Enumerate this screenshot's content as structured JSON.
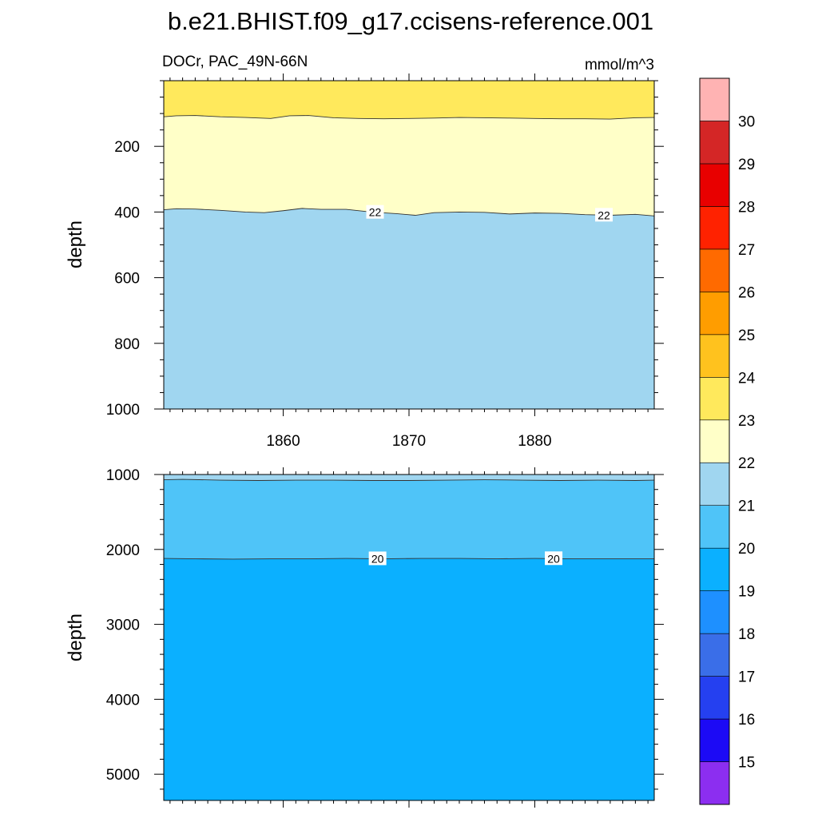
{
  "figure": {
    "title": "b.e21.BHIST.f09_g17.ccisens-reference.001",
    "left_string": "DOCr, PAC_49N-66N",
    "right_string": "mmol/m^3"
  },
  "chart_data": [
    {
      "type": "contour",
      "panel": "upper",
      "ylabel": "depth",
      "xlim": [
        1850.5,
        1889.5
      ],
      "ylim": [
        0,
        1000
      ],
      "y_reversed": true,
      "x_ticks": [
        1860,
        1870,
        1880
      ],
      "y_ticks": [
        200,
        400,
        600,
        800,
        1000
      ],
      "bands": [
        {
          "range": [
            23,
            24
          ],
          "color": "#ffe95c"
        },
        {
          "range": [
            22,
            23
          ],
          "color": "#ffffc8"
        },
        {
          "range": [
            21,
            22
          ],
          "color": "#a0d6f0"
        }
      ],
      "contours": [
        {
          "level": 23,
          "x": [
            1850.5,
            1851.5,
            1853,
            1855,
            1857,
            1859,
            1860.5,
            1862,
            1864,
            1866,
            1868,
            1870,
            1872,
            1874,
            1876,
            1878,
            1880,
            1882,
            1884,
            1886,
            1888,
            1889.5
          ],
          "y": [
            110,
            107,
            106,
            110,
            112,
            115,
            107,
            106,
            113,
            115,
            116,
            115,
            114,
            112,
            113,
            114,
            115,
            116,
            116,
            117,
            113,
            112
          ]
        },
        {
          "level": 22,
          "x": [
            1850.5,
            1851.5,
            1853,
            1855,
            1857,
            1858.5,
            1860,
            1861.5,
            1863,
            1865,
            1867,
            1869,
            1870.5,
            1872,
            1874,
            1876,
            1878,
            1880,
            1882,
            1884,
            1886,
            1888,
            1889.5
          ],
          "y": [
            393,
            390,
            391,
            395,
            400,
            402,
            396,
            389,
            392,
            392,
            400,
            405,
            410,
            402,
            400,
            401,
            406,
            403,
            404,
            408,
            410,
            407,
            412
          ],
          "labels": [
            {
              "x": 1867.3,
              "text": "22"
            },
            {
              "x": 1885.5,
              "text": "22"
            }
          ]
        }
      ]
    },
    {
      "type": "contour",
      "panel": "lower",
      "ylabel": "depth",
      "xlim": [
        1850.5,
        1889.5
      ],
      "ylim": [
        1000,
        5350
      ],
      "y_reversed": true,
      "x_ticks": [
        1860,
        1870,
        1880
      ],
      "y_ticks": [
        1000,
        2000,
        3000,
        4000,
        5000
      ],
      "bands": [
        {
          "range": [
            21,
            22
          ],
          "color": "#a0d6f0"
        },
        {
          "range": [
            20,
            21
          ],
          "color": "#4fc4f8"
        },
        {
          "range": [
            19,
            20
          ],
          "color": "#0bb0ff"
        }
      ],
      "contours": [
        {
          "level": 21,
          "x": [
            1850.5,
            1852,
            1855,
            1858,
            1861,
            1864,
            1867,
            1870,
            1873,
            1876,
            1879,
            1882,
            1885,
            1888,
            1889.5
          ],
          "y": [
            1070,
            1065,
            1075,
            1080,
            1075,
            1075,
            1080,
            1080,
            1075,
            1070,
            1075,
            1080,
            1075,
            1080,
            1075
          ]
        },
        {
          "level": 20,
          "x": [
            1850.5,
            1853,
            1856,
            1859,
            1862,
            1865,
            1868,
            1871,
            1874,
            1877,
            1880,
            1883,
            1886,
            1889.5
          ],
          "y": [
            2120,
            2125,
            2130,
            2125,
            2125,
            2120,
            2125,
            2120,
            2120,
            2125,
            2120,
            2125,
            2125,
            2125
          ],
          "labels": [
            {
              "x": 1867.5,
              "text": "20"
            },
            {
              "x": 1881.5,
              "text": "20"
            }
          ]
        }
      ]
    },
    {
      "type": "colorbar",
      "orientation": "vertical",
      "tick_labels": [
        "15",
        "16",
        "17",
        "18",
        "19",
        "20",
        "21",
        "22",
        "23",
        "24",
        "25",
        "26",
        "27",
        "28",
        "29",
        "30"
      ],
      "colors": [
        "#8c2ef0",
        "#1c0af5",
        "#2540f0",
        "#3a6ee8",
        "#1e90ff",
        "#0bb0ff",
        "#4fc4f8",
        "#a0d6f0",
        "#ffffc8",
        "#ffe95c",
        "#ffc21e",
        "#ff9d00",
        "#ff6a00",
        "#ff2200",
        "#e80000",
        "#d42626",
        "#ffb3b3"
      ]
    }
  ]
}
